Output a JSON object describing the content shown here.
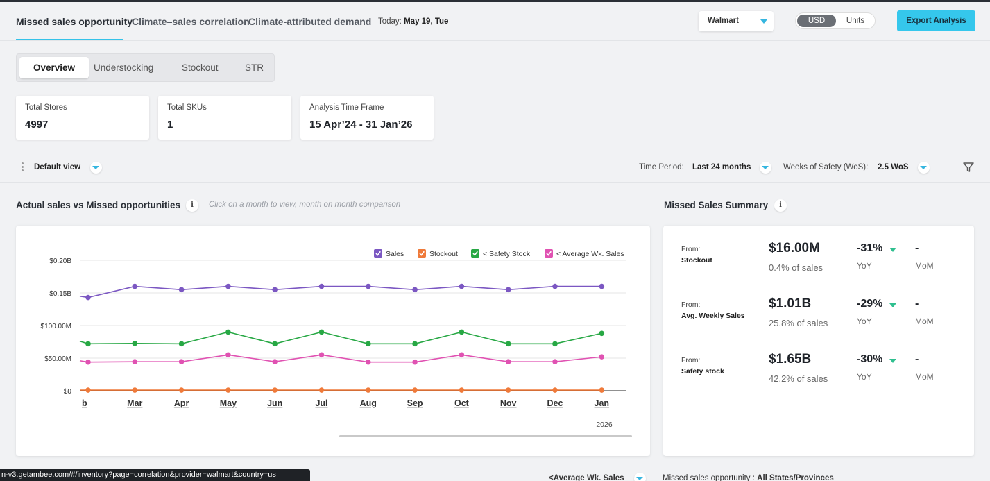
{
  "nav": {
    "tabs": [
      "Missed sales opportunity",
      "Climate–sales correlation",
      "Climate-attributed demand"
    ],
    "today_label": "Today:",
    "today_value": "May 19, Tue",
    "retailer": "Walmart",
    "toggle": [
      "USD",
      "Units"
    ],
    "export_label": "Export Analysis"
  },
  "subtabs": [
    "Overview",
    "Understocking",
    "Stockout",
    "STR"
  ],
  "cards": [
    {
      "label": "Total Stores",
      "value": "4997"
    },
    {
      "label": "Total SKUs",
      "value": "1"
    },
    {
      "label": "Analysis Time Frame",
      "value": "15 Apr’24 - 31 Jan’26"
    }
  ],
  "viewbar": {
    "view": "Default view",
    "time_period_label": "Time Period:",
    "time_period_value": "Last 24 months",
    "wos_label": "Weeks of Safety (WoS):",
    "wos_value": "2.5 WoS"
  },
  "chart_section": {
    "title": "Actual sales vs Missed opportunities",
    "hint": "Click on a month to view, month on month comparison",
    "info": "i"
  },
  "summary_section": {
    "title": "Missed Sales Summary",
    "info": "i",
    "rows": [
      {
        "from": "From:",
        "source": "Stockout",
        "amount": "$16.00M",
        "share": "0.4% of sales",
        "yoy": "-31%",
        "yoy_label": "YoY",
        "mom": "-",
        "mom_label": "MoM"
      },
      {
        "from": "From:",
        "source": "Avg. Weekly Sales",
        "amount": "$1.01B",
        "share": "25.8% of sales",
        "yoy": "-29%",
        "yoy_label": "YoY",
        "mom": "-",
        "mom_label": "MoM"
      },
      {
        "from": "From:",
        "source": "Safety stock",
        "amount": "$1.65B",
        "share": "42.2% of sales",
        "yoy": "-30%",
        "yoy_label": "YoY",
        "mom": "-",
        "mom_label": "MoM"
      }
    ]
  },
  "chart_data": {
    "type": "line",
    "title": "",
    "xlabel": "",
    "ylabel": "",
    "categories": [
      "b",
      "Mar",
      "Apr",
      "May",
      "Jun",
      "Jul",
      "Aug",
      "Sep",
      "Oct",
      "Nov",
      "Dec",
      "Jan"
    ],
    "year_label": "2026",
    "y_ticks": [
      "$0",
      "$50.00M",
      "$100.00M",
      "$0.15B",
      "$0.20B"
    ],
    "ylim": [
      0,
      200
    ],
    "y_unit": "$M",
    "legend": "top-right",
    "series": [
      {
        "name": "Sales",
        "color": "#7b57c2",
        "lead_in": 145,
        "values": [
          143,
          160,
          155,
          160,
          155,
          160,
          160,
          155,
          160,
          155,
          160,
          160
        ]
      },
      {
        "name": "Stockout",
        "color": "#ef7a3a",
        "lead_in": 1,
        "values": [
          1,
          1,
          1,
          1,
          1,
          1,
          1,
          1,
          1,
          1,
          1,
          1
        ]
      },
      {
        "name": "< Safety Stock",
        "color": "#27a844",
        "lead_in": 76,
        "values": [
          72,
          72.5,
          72,
          90,
          72,
          90,
          72,
          72,
          90,
          72,
          72,
          88
        ]
      },
      {
        "name": "< Average Wk. Sales",
        "color": "#e052b2",
        "lead_in": 46,
        "values": [
          44,
          44.5,
          44.5,
          55,
          44.5,
          55,
          44,
          44,
          55,
          44.5,
          44.5,
          52
        ]
      }
    ]
  },
  "bottom": {
    "url": "n-v3.getambee.com/#/inventory?page=correlation&provider=walmart&country=us",
    "series_select": "<Average Wk. Sales",
    "missed_label": "Missed sales opportunity :",
    "missed_value": "All States/Provinces"
  }
}
